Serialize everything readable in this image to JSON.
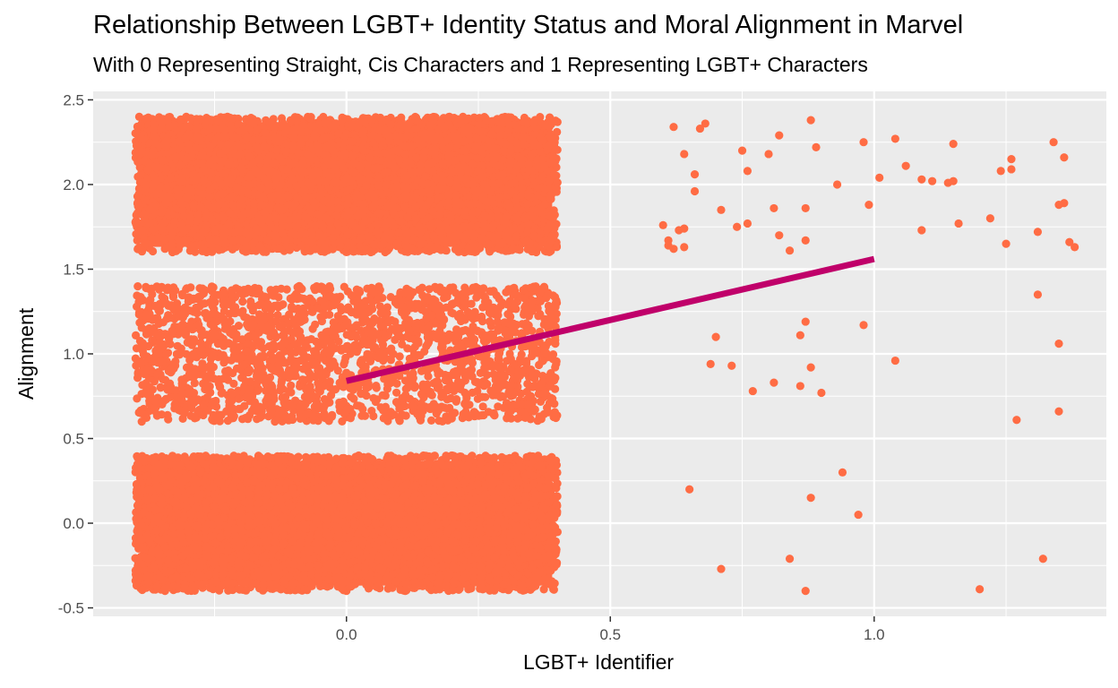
{
  "chart_data": {
    "type": "scatter",
    "title": "Relationship Between LGBT+ Identity Status and Moral Alignment in Marvel",
    "subtitle": "With 0 Representing Straight, Cis Characters and 1 Representing LGBT+ Characters",
    "xlabel": "LGBT+ Identifier",
    "ylabel": "Alignment",
    "xlim": [
      -0.48,
      1.44
    ],
    "ylim": [
      -0.55,
      2.55
    ],
    "x_ticks": [
      0.0,
      0.5,
      1.0
    ],
    "x_tick_labels": [
      "0.0",
      "0.5",
      "1.0"
    ],
    "y_ticks": [
      -0.5,
      0.0,
      0.5,
      1.0,
      1.5,
      2.0,
      2.5
    ],
    "y_tick_labels": [
      "-0.5",
      "0.0",
      "0.5",
      "1.0",
      "1.5",
      "2.0",
      "2.5"
    ],
    "grid": true,
    "point_color": "#FF6C44",
    "line_color": "#C0006A",
    "panel_background": "#EBEBEB",
    "grid_color": "#FFFFFF",
    "jitter_clusters": [
      {
        "x_range": [
          -0.4,
          0.4
        ],
        "y_center": 0,
        "y_halfwidth": 0.4,
        "density": "very high"
      },
      {
        "x_range": [
          -0.4,
          0.4
        ],
        "y_center": 1,
        "y_halfwidth": 0.4,
        "density": "high"
      },
      {
        "x_range": [
          -0.4,
          0.4
        ],
        "y_center": 2,
        "y_halfwidth": 0.4,
        "density": "very high"
      }
    ],
    "series": [
      {
        "type": "scatter",
        "points": [
          [
            0.62,
            2.34
          ],
          [
            0.68,
            2.36
          ],
          [
            0.67,
            2.33
          ],
          [
            0.64,
            2.18
          ],
          [
            0.75,
            2.2
          ],
          [
            0.82,
            2.29
          ],
          [
            0.88,
            2.38
          ],
          [
            0.89,
            2.22
          ],
          [
            0.98,
            2.25
          ],
          [
            1.04,
            2.27
          ],
          [
            1.15,
            2.24
          ],
          [
            1.34,
            2.25
          ],
          [
            1.36,
            2.16
          ],
          [
            1.26,
            2.15
          ],
          [
            0.66,
            2.06
          ],
          [
            0.76,
            2.08
          ],
          [
            0.8,
            2.18
          ],
          [
            1.06,
            2.11
          ],
          [
            1.09,
            2.03
          ],
          [
            1.11,
            2.02
          ],
          [
            1.14,
            2.01
          ],
          [
            1.15,
            2.02
          ],
          [
            1.24,
            2.08
          ],
          [
            1.26,
            2.09
          ],
          [
            0.93,
            2.0
          ],
          [
            1.01,
            2.04
          ],
          [
            0.66,
            1.96
          ],
          [
            0.99,
            1.88
          ],
          [
            0.6,
            1.76
          ],
          [
            0.63,
            1.73
          ],
          [
            0.64,
            1.74
          ],
          [
            0.61,
            1.67
          ],
          [
            0.61,
            1.64
          ],
          [
            0.62,
            1.62
          ],
          [
            0.64,
            1.63
          ],
          [
            0.71,
            1.85
          ],
          [
            0.74,
            1.75
          ],
          [
            0.76,
            1.77
          ],
          [
            0.81,
            1.86
          ],
          [
            0.87,
            1.86
          ],
          [
            0.82,
            1.7
          ],
          [
            0.84,
            1.61
          ],
          [
            0.87,
            1.67
          ],
          [
            1.09,
            1.73
          ],
          [
            1.16,
            1.77
          ],
          [
            1.22,
            1.8
          ],
          [
            1.25,
            1.65
          ],
          [
            1.31,
            1.72
          ],
          [
            1.35,
            1.88
          ],
          [
            1.36,
            1.89
          ],
          [
            1.37,
            1.66
          ],
          [
            1.38,
            1.63
          ],
          [
            1.31,
            1.35
          ],
          [
            0.87,
            1.19
          ],
          [
            0.98,
            1.17
          ],
          [
            0.86,
            1.11
          ],
          [
            0.7,
            1.1
          ],
          [
            1.35,
            1.06
          ],
          [
            1.04,
            0.96
          ],
          [
            0.69,
            0.94
          ],
          [
            0.73,
            0.93
          ],
          [
            0.88,
            0.92
          ],
          [
            0.77,
            0.78
          ],
          [
            0.81,
            0.83
          ],
          [
            0.86,
            0.81
          ],
          [
            0.9,
            0.77
          ],
          [
            1.35,
            0.66
          ],
          [
            1.27,
            0.61
          ],
          [
            0.94,
            0.3
          ],
          [
            0.65,
            0.2
          ],
          [
            0.88,
            0.15
          ],
          [
            0.97,
            0.05
          ],
          [
            0.71,
            -0.27
          ],
          [
            0.84,
            -0.21
          ],
          [
            1.32,
            -0.21
          ],
          [
            0.87,
            -0.4
          ],
          [
            1.2,
            -0.39
          ]
        ]
      },
      {
        "type": "line",
        "name": "fit",
        "x": [
          0,
          1
        ],
        "y": [
          0.84,
          1.56
        ]
      }
    ]
  }
}
